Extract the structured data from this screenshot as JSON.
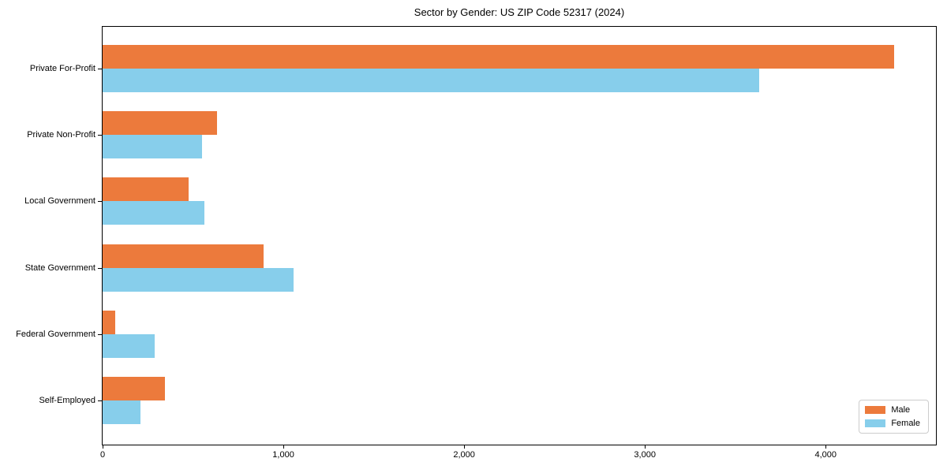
{
  "chart_data": {
    "type": "bar",
    "orientation": "horizontal",
    "title": "Sector by Gender: US ZIP Code 52317 (2024)",
    "xlabel": "",
    "ylabel": "",
    "categories": [
      "Private For-Profit",
      "Private Non-Profit",
      "Local Government",
      "State Government",
      "Federal Government",
      "Self-Employed"
    ],
    "series": [
      {
        "name": "Male",
        "color": "#ec7a3c",
        "values": [
          4380,
          635,
          475,
          890,
          70,
          345
        ]
      },
      {
        "name": "Female",
        "color": "#87ceeb",
        "values": [
          3630,
          550,
          565,
          1055,
          290,
          210
        ]
      }
    ],
    "xlim": [
      0,
      4610
    ],
    "x_ticks": [
      {
        "value": 0,
        "label": "0"
      },
      {
        "value": 1000,
        "label": "1,000"
      },
      {
        "value": 2000,
        "label": "2,000"
      },
      {
        "value": 3000,
        "label": "3,000"
      },
      {
        "value": 4000,
        "label": "4,000"
      }
    ],
    "grid": false,
    "legend_position": "lower right"
  }
}
